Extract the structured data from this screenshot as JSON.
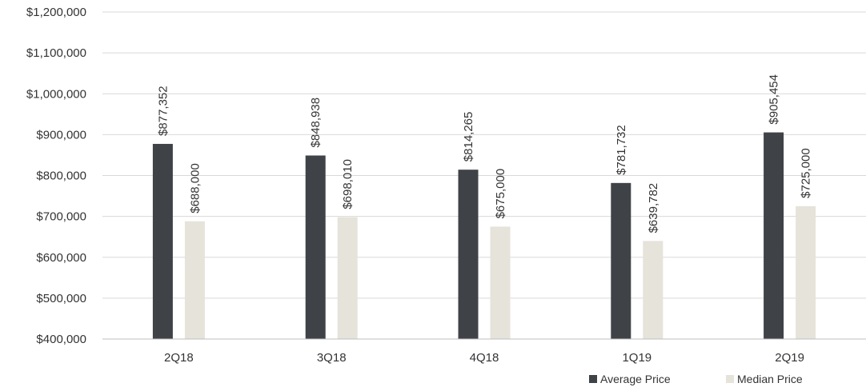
{
  "chart_data": {
    "type": "bar",
    "categories": [
      "2Q18",
      "3Q18",
      "4Q18",
      "1Q19",
      "2Q19"
    ],
    "series": [
      {
        "name": "Average Price",
        "values": [
          877352,
          848938,
          814265,
          781732,
          905454
        ],
        "labels": [
          "$877,352",
          "$848,938",
          "$814,265",
          "$781,732",
          "$905,454"
        ]
      },
      {
        "name": "Median Price",
        "values": [
          688000,
          698010,
          675000,
          639782,
          725000
        ],
        "labels": [
          "$688,000",
          "$698,010",
          "$675,000",
          "$639,782",
          "$725,000"
        ]
      }
    ],
    "yticks": [
      400000,
      500000,
      600000,
      700000,
      800000,
      900000,
      1000000,
      1100000,
      1200000
    ],
    "ytick_labels": [
      "$400,000",
      "$500,000",
      "$600,000",
      "$700,000",
      "$800,000",
      "$900,000",
      "$1,000,000",
      "$1,100,000",
      "$1,200,000"
    ],
    "ylim": [
      400000,
      1200000
    ],
    "grid": true,
    "legend_position": "bottom-right",
    "colors": {
      "average": "#3f4246",
      "median": "#e6e3da",
      "grid": "#d9d9d9",
      "text": "#333333"
    }
  }
}
